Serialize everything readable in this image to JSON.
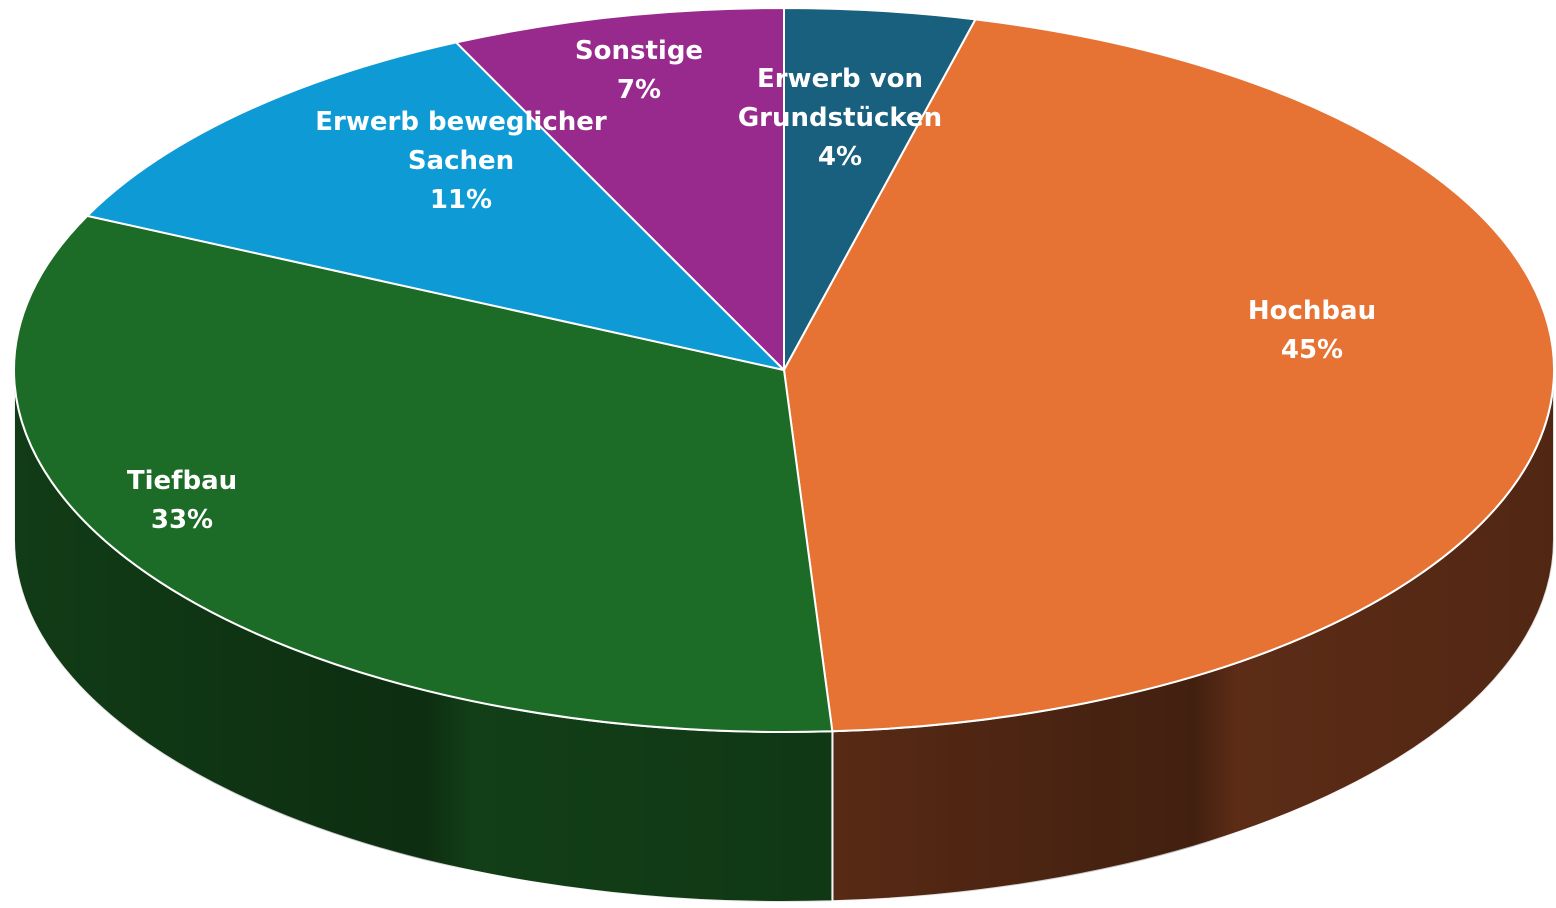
{
  "chart_data": {
    "type": "pie",
    "title": "",
    "style": "3d",
    "start_angle_clockwise_from_top_deg": 0,
    "slices": [
      {
        "label_lines": [
          "Erwerb von",
          "Grundstücken"
        ],
        "value": 4,
        "value_label": "4%",
        "color": "#195F7E",
        "side_color": "#0E3A4E"
      },
      {
        "label_lines": [
          "Hochbau"
        ],
        "value": 45,
        "value_label": "45%",
        "color": "#E67333",
        "side_color": "#5C2C16"
      },
      {
        "label_lines": [
          "Tiefbau"
        ],
        "value": 33,
        "value_label": "33%",
        "color": "#1C6B26",
        "side_color": "#123F17"
      },
      {
        "label_lines": [
          "Erwerb beweglicher",
          "Sachen"
        ],
        "value": 11,
        "value_label": "11%",
        "color": "#0E9BD5",
        "side_color": "#0A5F85"
      },
      {
        "label_lines": [
          "Sonstige"
        ],
        "value": 7,
        "value_label": "7%",
        "color": "#992A8D",
        "side_color": "#5C1A55"
      }
    ]
  }
}
